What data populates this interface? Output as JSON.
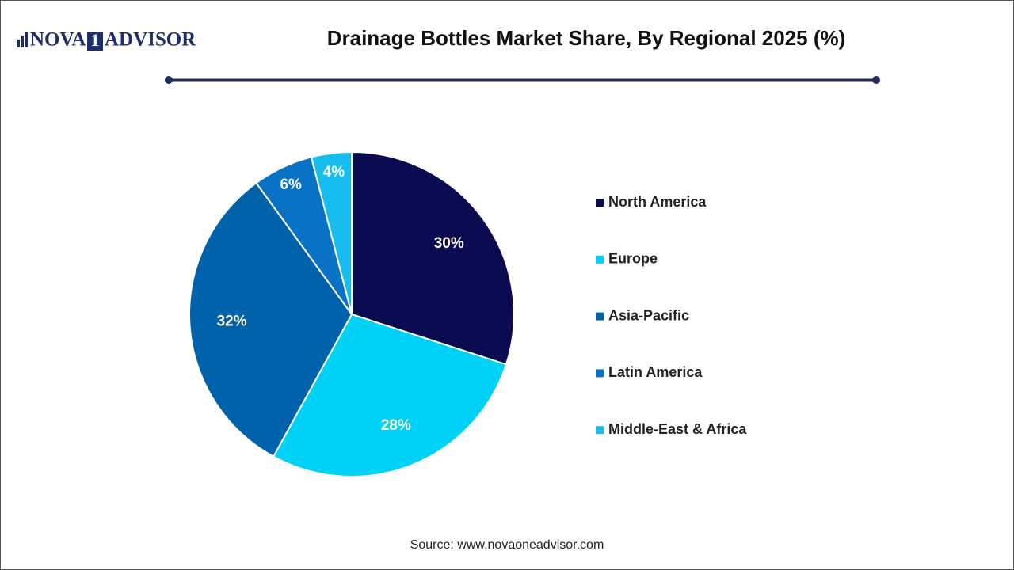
{
  "logo": {
    "left": "NOVA",
    "mid": "1",
    "right": "ADVISOR"
  },
  "chart_data": {
    "type": "pie",
    "title": "Drainage Bottles Market Share, By Regional 2025 (%)",
    "categories": [
      "North America",
      "Europe",
      "Asia-Pacific",
      "Latin America",
      "Middle-East & Africa"
    ],
    "values": [
      30,
      28,
      32,
      6,
      4
    ],
    "value_labels": [
      "30%",
      "28%",
      "32%",
      "6%",
      "4%"
    ],
    "colors": [
      "#0b0b52",
      "#00d2f7",
      "#0062aa",
      "#0a72c4",
      "#18bdf0"
    ],
    "legend": "right",
    "source": "Source: www.novaoneadvisor.com"
  }
}
